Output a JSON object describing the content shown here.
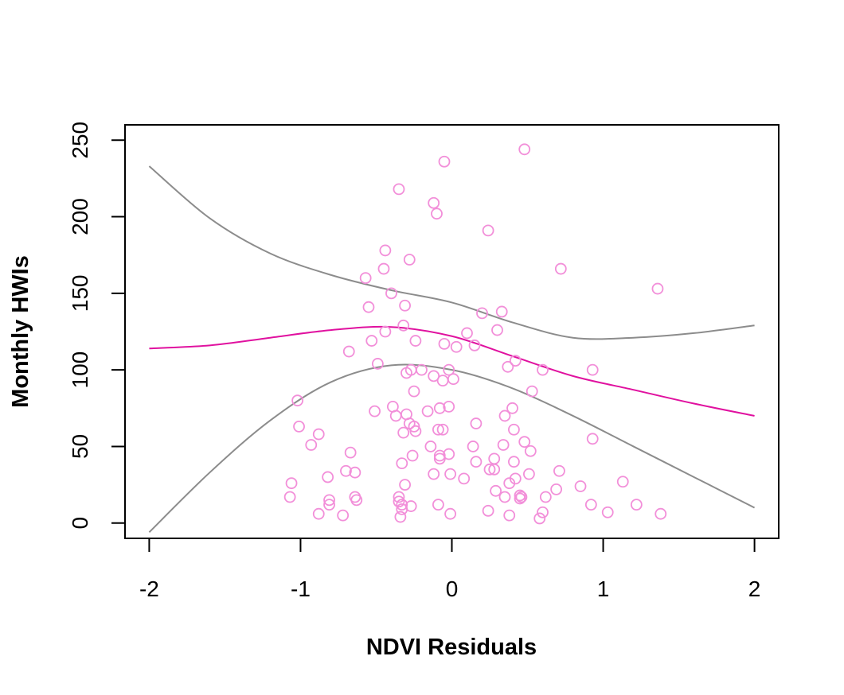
{
  "chart_data": {
    "type": "scatter",
    "title": "",
    "xlabel": "NDVI Residuals",
    "ylabel": "Monthly HWIs",
    "xlim": [
      -2.16,
      2.16
    ],
    "ylim": [
      -10,
      260
    ],
    "x_ticks": [
      -2,
      -1,
      0,
      1,
      2
    ],
    "x_tick_labels": [
      "-2",
      "-1",
      "0",
      "1",
      "2"
    ],
    "y_ticks": [
      0,
      50,
      100,
      150,
      200,
      250
    ],
    "y_tick_labels": [
      "0",
      "50",
      "100",
      "150",
      "200",
      "250"
    ],
    "grid": false,
    "legend": "none",
    "colors": {
      "points": "#f28fd9",
      "fit": "#e0119f",
      "band": "#8c8c8c",
      "frame": "#000000"
    },
    "points": [
      [
        -0.05,
        236
      ],
      [
        0.48,
        244
      ],
      [
        -0.35,
        218
      ],
      [
        -0.12,
        209
      ],
      [
        -0.1,
        202
      ],
      [
        0.24,
        191
      ],
      [
        -0.44,
        178
      ],
      [
        -0.28,
        172
      ],
      [
        0.72,
        166
      ],
      [
        -0.45,
        166
      ],
      [
        1.36,
        153
      ],
      [
        -0.57,
        160
      ],
      [
        -0.4,
        150
      ],
      [
        -0.55,
        141
      ],
      [
        -0.31,
        142
      ],
      [
        0.33,
        138
      ],
      [
        0.2,
        137
      ],
      [
        0.3,
        126
      ],
      [
        -0.32,
        129
      ],
      [
        -0.44,
        125
      ],
      [
        0.1,
        124
      ],
      [
        -0.53,
        119
      ],
      [
        -0.24,
        119
      ],
      [
        0.15,
        116
      ],
      [
        -0.05,
        117
      ],
      [
        0.03,
        115
      ],
      [
        -0.68,
        112
      ],
      [
        0.42,
        106
      ],
      [
        -0.49,
        104
      ],
      [
        0.37,
        102
      ],
      [
        -0.27,
        100
      ],
      [
        -0.2,
        100
      ],
      [
        -0.02,
        100
      ],
      [
        0.6,
        100
      ],
      [
        0.93,
        100
      ],
      [
        -0.3,
        98
      ],
      [
        -0.12,
        96
      ],
      [
        -0.06,
        93
      ],
      [
        0.01,
        94
      ],
      [
        0.53,
        86
      ],
      [
        -0.25,
        86
      ],
      [
        -1.02,
        80
      ],
      [
        -0.39,
        76
      ],
      [
        -0.02,
        76
      ],
      [
        0.4,
        75
      ],
      [
        -0.08,
        75
      ],
      [
        -0.16,
        73
      ],
      [
        -0.51,
        73
      ],
      [
        -0.37,
        70
      ],
      [
        -0.3,
        71
      ],
      [
        0.35,
        70
      ],
      [
        -0.28,
        65
      ],
      [
        0.16,
        65
      ],
      [
        -0.25,
        63
      ],
      [
        -0.06,
        61
      ],
      [
        -0.09,
        61
      ],
      [
        0.41,
        61
      ],
      [
        -0.24,
        60
      ],
      [
        -0.32,
        59
      ],
      [
        -1.01,
        63
      ],
      [
        -0.88,
        58
      ],
      [
        0.93,
        55
      ],
      [
        -0.14,
        50
      ],
      [
        0.48,
        53
      ],
      [
        0.14,
        50
      ],
      [
        -0.93,
        51
      ],
      [
        0.34,
        51
      ],
      [
        0.52,
        47
      ],
      [
        -0.67,
        46
      ],
      [
        -0.26,
        44
      ],
      [
        -0.08,
        44
      ],
      [
        -0.08,
        42
      ],
      [
        -0.02,
        45
      ],
      [
        0.28,
        42
      ],
      [
        0.16,
        40
      ],
      [
        -0.33,
        39
      ],
      [
        0.41,
        40
      ],
      [
        0.25,
        35
      ],
      [
        0.28,
        35
      ],
      [
        -0.7,
        34
      ],
      [
        0.71,
        34
      ],
      [
        -0.64,
        33
      ],
      [
        -0.12,
        32
      ],
      [
        -0.01,
        32
      ],
      [
        0.51,
        32
      ],
      [
        -0.82,
        30
      ],
      [
        0.08,
        29
      ],
      [
        0.42,
        29
      ],
      [
        0.38,
        26
      ],
      [
        1.13,
        27
      ],
      [
        -1.06,
        26
      ],
      [
        -0.31,
        25
      ],
      [
        0.85,
        24
      ],
      [
        0.69,
        22
      ],
      [
        0.29,
        21
      ],
      [
        0.45,
        18
      ],
      [
        0.46,
        17
      ],
      [
        -1.07,
        17
      ],
      [
        -0.64,
        17
      ],
      [
        -0.35,
        17
      ],
      [
        0.62,
        17
      ],
      [
        0.35,
        17
      ],
      [
        -0.63,
        15
      ],
      [
        -0.81,
        15
      ],
      [
        -0.35,
        14
      ],
      [
        0.45,
        16
      ],
      [
        -0.81,
        12
      ],
      [
        -0.33,
        12
      ],
      [
        -0.27,
        11
      ],
      [
        -0.09,
        12
      ],
      [
        0.92,
        12
      ],
      [
        1.22,
        12
      ],
      [
        -0.33,
        9
      ],
      [
        0.24,
        8
      ],
      [
        1.03,
        7
      ],
      [
        0.6,
        7
      ],
      [
        -0.88,
        6
      ],
      [
        -0.72,
        5
      ],
      [
        -0.01,
        6
      ],
      [
        0.38,
        5
      ],
      [
        1.38,
        6
      ],
      [
        -0.34,
        4
      ],
      [
        0.58,
        3
      ]
    ],
    "series": [
      {
        "role": "fit",
        "x": [
          -2,
          -1.6,
          -1.2,
          -0.8,
          -0.4,
          0,
          0.4,
          0.8,
          1.2,
          1.6,
          2
        ],
        "y": [
          114,
          116,
          121,
          126,
          128,
          122,
          109,
          96,
          87,
          78,
          70
        ]
      },
      {
        "role": "upper",
        "x": [
          -2,
          -1.6,
          -1.2,
          -0.8,
          -0.4,
          0,
          0.4,
          0.8,
          1.2,
          1.6,
          2
        ],
        "y": [
          233,
          199,
          176,
          162,
          152,
          144,
          131,
          121,
          121,
          124,
          129
        ]
      },
      {
        "role": "lower",
        "x": [
          -2,
          -1.6,
          -1.2,
          -0.8,
          -0.4,
          0,
          0.4,
          0.8,
          1.2,
          1.6,
          2
        ],
        "y": [
          -6,
          33,
          67,
          92,
          103,
          100,
          88,
          70,
          50,
          30,
          10
        ]
      }
    ]
  }
}
